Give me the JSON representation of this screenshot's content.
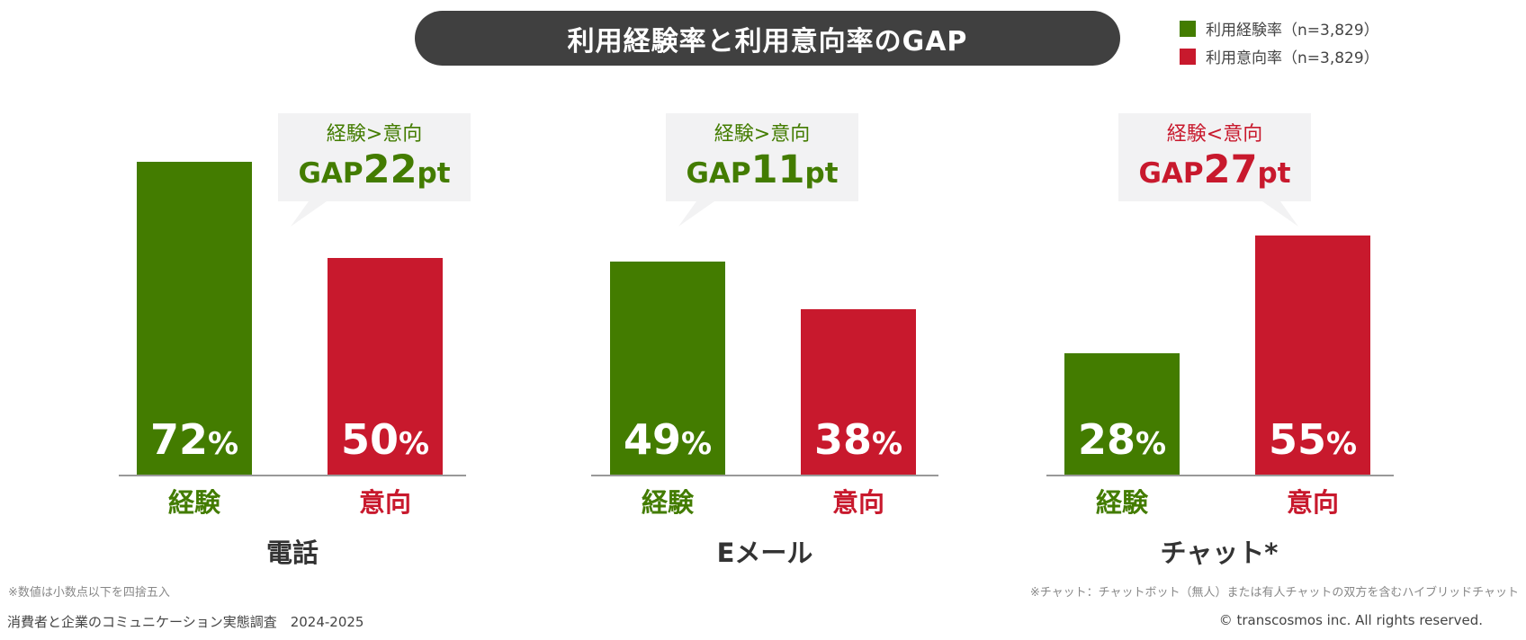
{
  "colors": {
    "experience": "#437c00",
    "intention": "#c8192d",
    "axis": "#999999",
    "callout_bg": "#f2f2f3",
    "title_bg": "#404040"
  },
  "title": "利用経験率と利用意向率のGAP",
  "legend": [
    {
      "label": "利用経験率（n=3,829）",
      "color": "#437c00"
    },
    {
      "label": "利用意向率（n=3,829）",
      "color": "#c8192d"
    }
  ],
  "chart_data": {
    "type": "bar",
    "title": "利用経験率と利用意向率のGAP",
    "ylim": [
      0,
      80
    ],
    "grid": false,
    "legend_position": "top-right",
    "series_names": [
      "利用経験率（n=3,829）",
      "利用意向率（n=3,829）"
    ],
    "groups": [
      {
        "label": "電話",
        "bars": [
          {
            "category": "経験",
            "value": 72,
            "value_text": "72",
            "unit": "%",
            "color": "#437c00"
          },
          {
            "category": "意向",
            "value": 50,
            "value_text": "50",
            "unit": "%",
            "color": "#c8192d"
          }
        ],
        "callout": {
          "comparison": "経験>意向",
          "gap_word": "GAP",
          "gap_value": "22",
          "gap_unit": "pt",
          "color": "#437c00",
          "points_to": "left"
        }
      },
      {
        "label": "Eメール",
        "bars": [
          {
            "category": "経験",
            "value": 49,
            "value_text": "49",
            "unit": "%",
            "color": "#437c00"
          },
          {
            "category": "意向",
            "value": 38,
            "value_text": "38",
            "unit": "%",
            "color": "#c8192d"
          }
        ],
        "callout": {
          "comparison": "経験>意向",
          "gap_word": "GAP",
          "gap_value": "11",
          "gap_unit": "pt",
          "color": "#437c00",
          "points_to": "left"
        }
      },
      {
        "label": "チャット*",
        "bars": [
          {
            "category": "経験",
            "value": 28,
            "value_text": "28",
            "unit": "%",
            "color": "#437c00"
          },
          {
            "category": "意向",
            "value": 55,
            "value_text": "55",
            "unit": "%",
            "color": "#c8192d"
          }
        ],
        "callout": {
          "comparison": "経験<意向",
          "gap_word": "GAP",
          "gap_value": "27",
          "gap_unit": "pt",
          "color": "#c8192d",
          "points_to": "right"
        }
      }
    ]
  },
  "footnotes": {
    "left": "※数値は小数点以下を四捨五入",
    "right": "※チャット：チャットボット（無人）または有人チャットの双方を含むハイブリッドチャット"
  },
  "source": "消費者と企業のコミュニケーション実態調査　2024-2025",
  "copyright": "© transcosmos inc. All rights reserved."
}
